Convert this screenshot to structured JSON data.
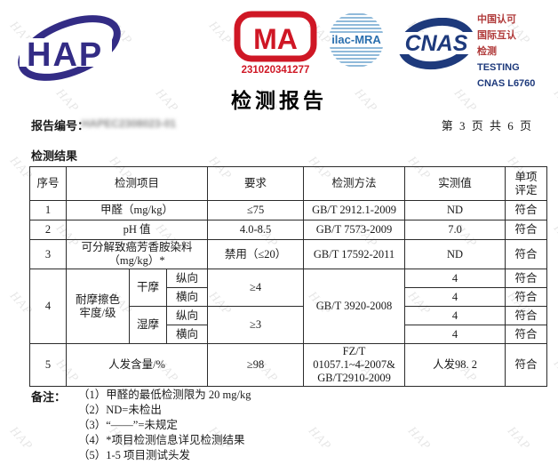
{
  "watermark": {
    "text": "HAP"
  },
  "header": {
    "hap_logo_text": "HAP",
    "cma": {
      "text": "MA",
      "number": "231020341277"
    },
    "ilac": {
      "text": "ilac-MRA"
    },
    "cnas": {
      "text": "CNAS"
    },
    "accreditation_lines": [
      "中国认可",
      "国际互认",
      "检测",
      "TESTING",
      "CNAS L6760"
    ],
    "title": "检测报告"
  },
  "meta": {
    "report_no_label": "报告编号：",
    "report_no_value": "HAPEC2308023-01",
    "page_info": "第 3 页 共 6 页"
  },
  "section_title": "检测结果",
  "table": {
    "header": {
      "no": "序号",
      "item": "检测项目",
      "req": "要求",
      "method": "检测方法",
      "measured": "实测值",
      "verdict": "单项\n评定"
    },
    "row1": {
      "no": "1",
      "item": "甲醛（mg/kg）",
      "req": "≤75",
      "method": "GB/T 2912.1-2009",
      "measured": "ND",
      "verdict": "符合"
    },
    "row2": {
      "no": "2",
      "item": "pH 值",
      "req": "4.0-8.5",
      "method": "GB/T 7573-2009",
      "measured": "7.0",
      "verdict": "符合"
    },
    "row3": {
      "no": "3",
      "item": "可分解致癌芳香胺染料\n（mg/kg）*",
      "req": "禁用（≤20）",
      "method": "GB/T 17592-2011",
      "measured": "ND",
      "verdict": "符合"
    },
    "row4": {
      "no": "4",
      "item": "耐摩擦色\n牢度/级",
      "dry_label": "干摩",
      "wet_label": "湿摩",
      "dir1": "纵向",
      "dir2": "横向",
      "dir3": "纵向",
      "dir4": "横向",
      "req_dry": "≥4",
      "req_wet": "≥3",
      "method": "GB/T 3920-2008",
      "m1": "4",
      "m2": "4",
      "m3": "4",
      "m4": "4",
      "v1": "符合",
      "v2": "符合",
      "v3": "符合",
      "v4": "符合"
    },
    "row5": {
      "no": "5",
      "item": "人发含量/%",
      "req": "≥98",
      "method": "FZ/T\n01057.1~4-2007&\nGB/T2910-2009",
      "measured": "人发98. 2",
      "verdict": "符合"
    }
  },
  "notes": {
    "label": "备注：",
    "items": [
      "（1）甲醛的最低检测限为 20 mg/kg",
      "（2）ND=未检出",
      "（3）“——”=未规定",
      "（4）*项目检测信息详见检测结果",
      "（5）1-5 项目测试头发"
    ]
  }
}
